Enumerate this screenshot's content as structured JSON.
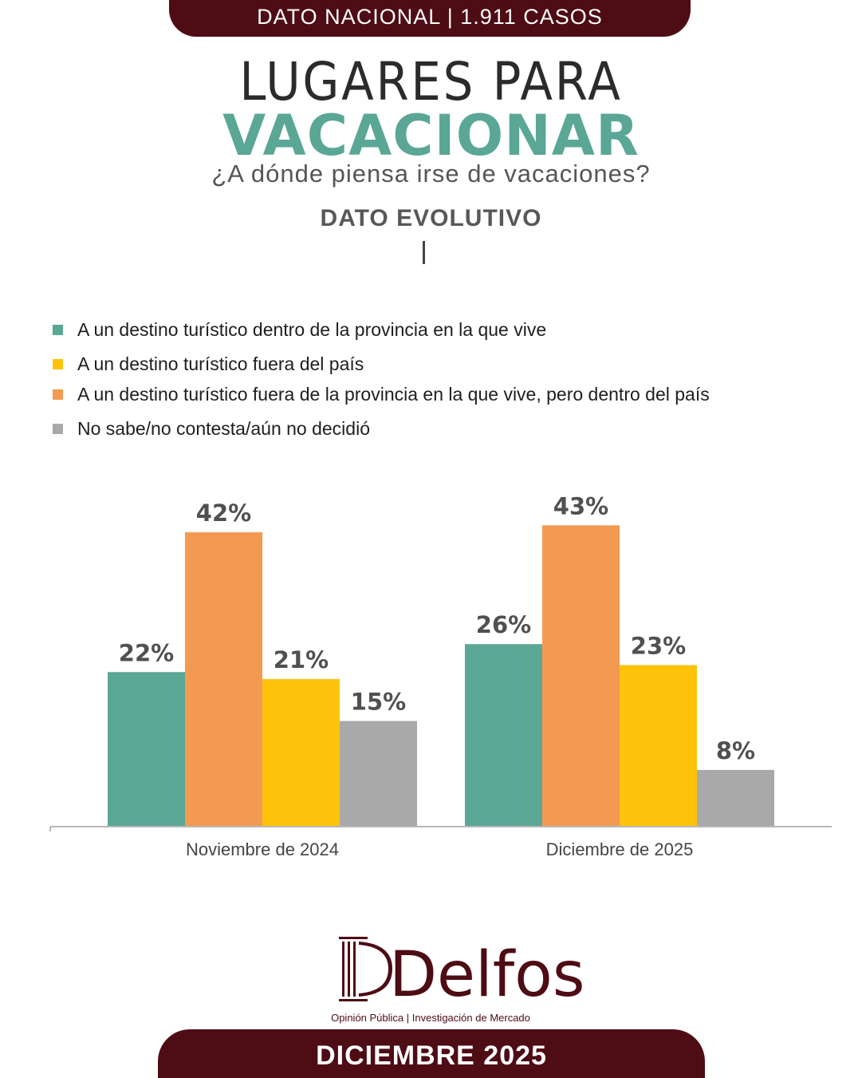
{
  "header": {
    "banner": "DATO NACIONAL | 1.911 CASOS",
    "title_line1": "LUGARES PARA",
    "title_line2": "VACACIONAR",
    "question": "¿A dónde piensa irse de vacaciones?",
    "section": "DATO EVOLUTIVO"
  },
  "colors": {
    "accent": "#5aa795",
    "brand": "#4e0c14",
    "series": [
      "#5aa795",
      "#f39a52",
      "#fdc30b",
      "#a9a9a9"
    ]
  },
  "legend": [
    {
      "label": "A un destino turístico dentro de la provincia en la que vive",
      "color": "#5aa795"
    },
    {
      "label": "A un destino turístico fuera del país",
      "color": "#fdc30b"
    },
    {
      "label": "A un destino turístico fuera de la provincia en la que vive, pero dentro del país",
      "color": "#f39a52"
    },
    {
      "label": "No sabe/no contesta/aún no decidió",
      "color": "#a9a9a9"
    }
  ],
  "chart_data": {
    "type": "bar",
    "categories": [
      "Noviembre de 2024",
      "Diciembre de 2025"
    ],
    "series": [
      {
        "name": "A un destino turístico dentro de la provincia en la que vive",
        "color": "#5aa795",
        "values": [
          22,
          26
        ],
        "labels": [
          "22%",
          "26%"
        ]
      },
      {
        "name": "A un destino turístico fuera de la provincia en la que vive, pero dentro del país",
        "color": "#f39a52",
        "values": [
          42,
          43
        ],
        "labels": [
          "42%",
          "43%"
        ]
      },
      {
        "name": "A un destino turístico fuera del país",
        "color": "#fdc30b",
        "values": [
          21,
          23
        ],
        "labels": [
          "21%",
          "23%"
        ]
      },
      {
        "name": "No sabe/no contesta/aún no decidió",
        "color": "#a9a9a9",
        "values": [
          15,
          8
        ],
        "labels": [
          "15%",
          "8%"
        ]
      }
    ],
    "ylim": [
      0,
      50
    ],
    "grid": false,
    "legend_position": "top"
  },
  "footer": {
    "logo_text": "Delfos",
    "tagline": "Opinión Pública | Investigación de Mercado",
    "date": "DICIEMBRE 2025"
  }
}
